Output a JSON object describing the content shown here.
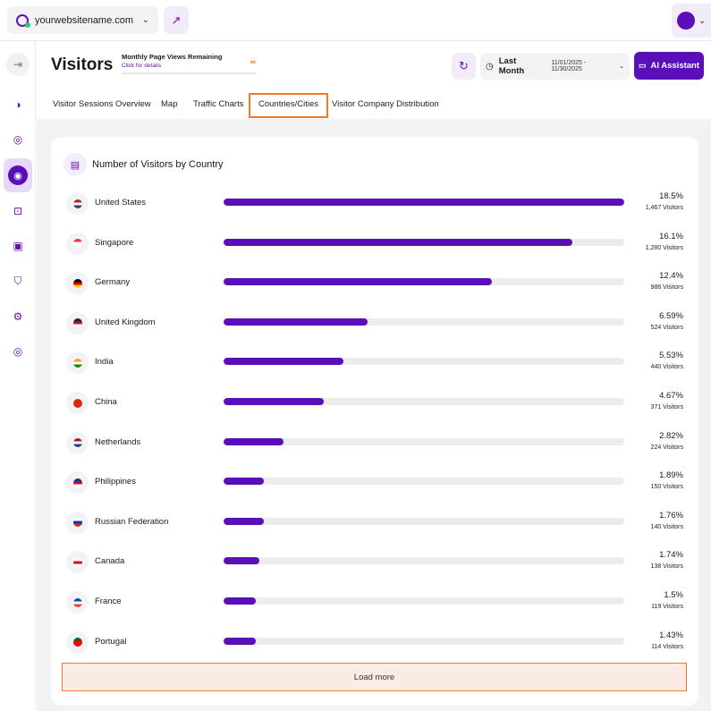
{
  "topbar": {
    "site_name": "yourwebsitename.com",
    "site_chevron": "⌄",
    "external_icon": "external-link-icon"
  },
  "sidebar": {
    "items": [
      {
        "icon": "collapse-icon",
        "glyph": "⇥"
      },
      {
        "icon": "dashboard-icon",
        "glyph": "◑"
      },
      {
        "icon": "bag-icon",
        "glyph": "◎"
      },
      {
        "icon": "visitors-icon",
        "glyph": "◉"
      },
      {
        "icon": "scan-icon",
        "glyph": "⊡"
      },
      {
        "icon": "chat-icon",
        "glyph": "▣"
      },
      {
        "icon": "shield-icon",
        "glyph": "⛉"
      },
      {
        "icon": "settings-icon",
        "glyph": "⚙"
      },
      {
        "icon": "location-icon",
        "glyph": "◎"
      }
    ]
  },
  "header": {
    "title": "Visitors",
    "page_views_title": "Monthly Page Views Remaining",
    "page_views_link": "Click for details",
    "page_views_value": "∞",
    "date_preset": "Last Month",
    "date_range": "11/01/2025 - 11/30/2025",
    "ai_button": "AI Assistant"
  },
  "tabs": [
    {
      "label": "Visitor Sessions Overview"
    },
    {
      "label": "Map"
    },
    {
      "label": "Traffic Charts"
    },
    {
      "label": "Countries/Cities"
    },
    {
      "label": "Visitor Company Distribution"
    }
  ],
  "card": {
    "title": "Number of Visitors by Country",
    "load_more": "Load more"
  },
  "countries": [
    {
      "name": "United States",
      "percent": "18.5%",
      "visitors": "1,467 Visitors",
      "fraction": 1.0,
      "flag": [
        "#b22234",
        "#ffffff",
        "#3c3b6e"
      ]
    },
    {
      "name": "Singapore",
      "percent": "16.1%",
      "visitors": "1,280 Visitors",
      "fraction": 0.87,
      "flag": [
        "#ef3340",
        "#ffffff",
        "#ffffff"
      ]
    },
    {
      "name": "Germany",
      "percent": "12.4%",
      "visitors": "986 Visitors",
      "fraction": 0.67,
      "flag": [
        "#000000",
        "#dd0000",
        "#ffce00"
      ]
    },
    {
      "name": "United Kingdom",
      "percent": "6.59%",
      "visitors": "524 Visitors",
      "fraction": 0.36,
      "flag": [
        "#012169",
        "#c8102e",
        "#ffffff"
      ]
    },
    {
      "name": "India",
      "percent": "5.53%",
      "visitors": "440 Visitors",
      "fraction": 0.3,
      "flag": [
        "#ff9933",
        "#ffffff",
        "#138808"
      ]
    },
    {
      "name": "China",
      "percent": "4.67%",
      "visitors": "371 Visitors",
      "fraction": 0.25,
      "flag": [
        "#de2910",
        "#de2910",
        "#de2910"
      ]
    },
    {
      "name": "Netherlands",
      "percent": "2.82%",
      "visitors": "224 Visitors",
      "fraction": 0.15,
      "flag": [
        "#ae1c28",
        "#ffffff",
        "#21468b"
      ]
    },
    {
      "name": "Philippines",
      "percent": "1.89%",
      "visitors": "150 Visitors",
      "fraction": 0.1,
      "flag": [
        "#0038a8",
        "#ce1126",
        "#ffffff"
      ]
    },
    {
      "name": "Russian Federation",
      "percent": "1.76%",
      "visitors": "140 Visitors",
      "fraction": 0.1,
      "flag": [
        "#ffffff",
        "#0039a6",
        "#d52b1e"
      ]
    },
    {
      "name": "Canada",
      "percent": "1.74%",
      "visitors": "138 Visitors",
      "fraction": 0.09,
      "flag": [
        "#ffffff",
        "#d80621",
        "#ffffff"
      ]
    },
    {
      "name": "France",
      "percent": "1.5%",
      "visitors": "119 Visitors",
      "fraction": 0.08,
      "flag": [
        "#0055a4",
        "#ffffff",
        "#ef4135"
      ]
    },
    {
      "name": "Portugal",
      "percent": "1.43%",
      "visitors": "114 Visitors",
      "fraction": 0.08,
      "flag": [
        "#006600",
        "#ff0000",
        "#ff0000"
      ]
    }
  ]
}
